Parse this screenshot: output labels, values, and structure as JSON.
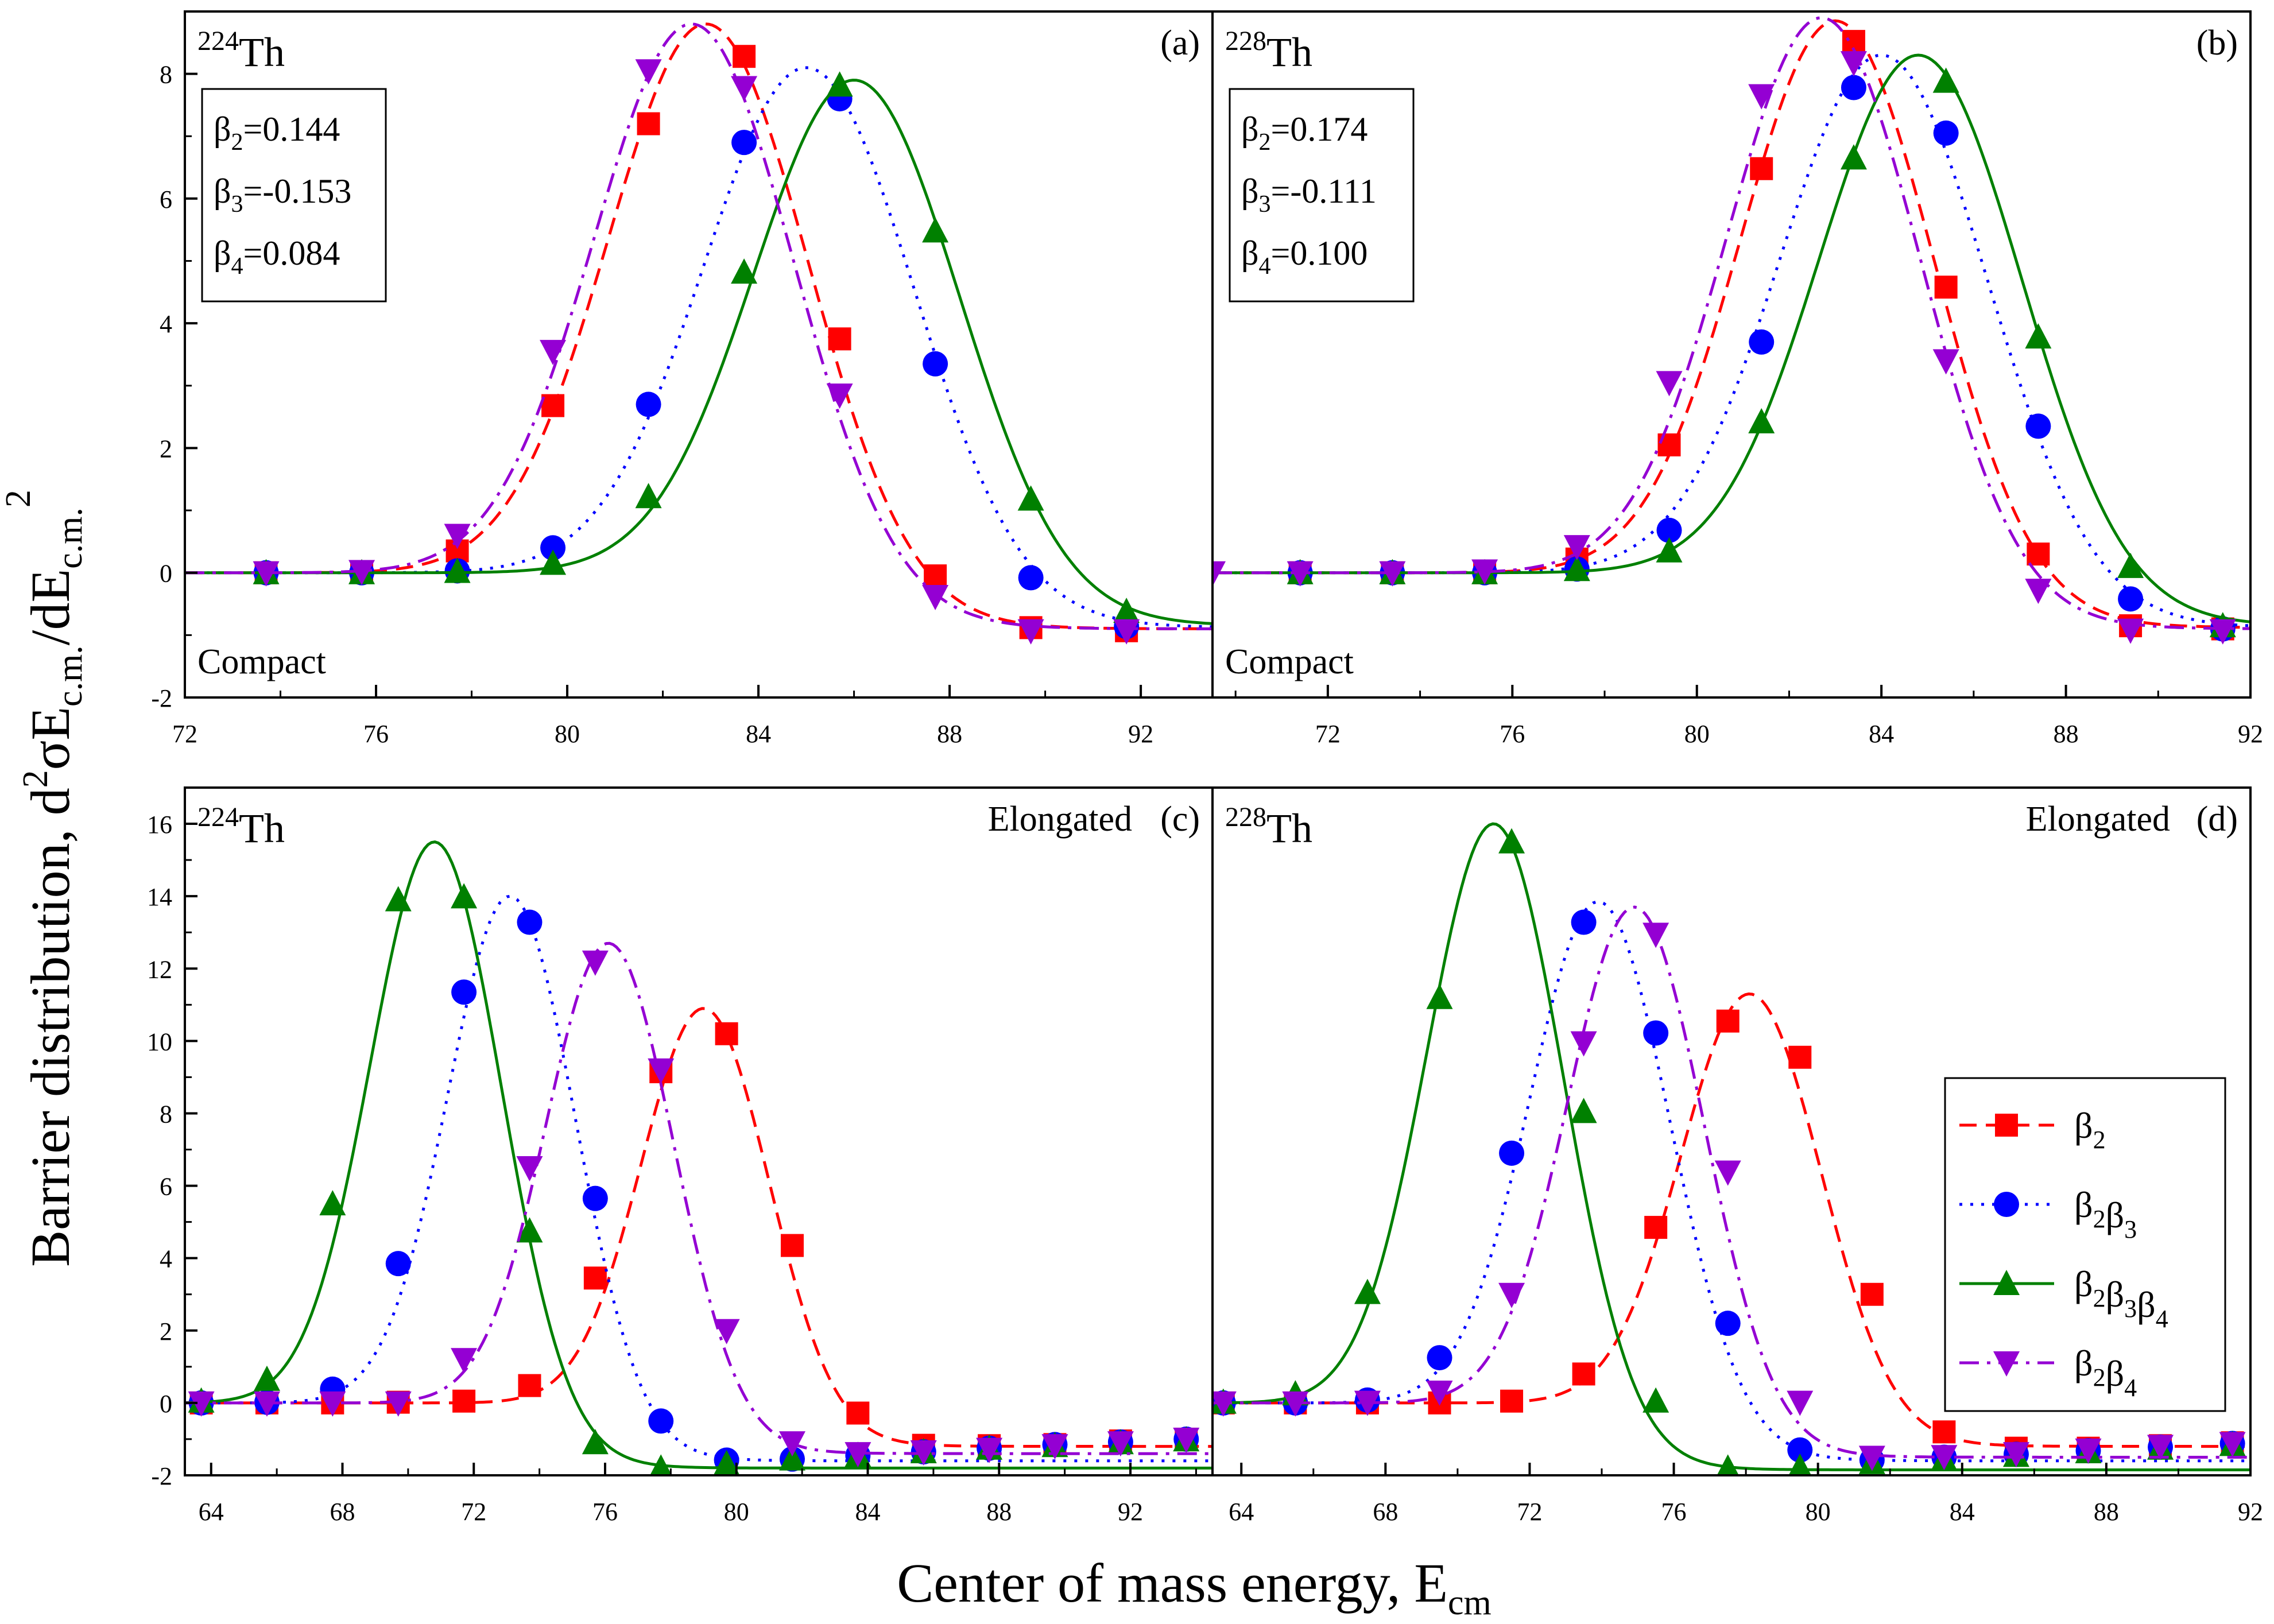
{
  "figure": {
    "ylabel_main": "Barrier distribution, d",
    "ylabel_sup": "2",
    "ylabel_mid": "σE",
    "ylabel_sub1": "c.m.",
    "ylabel_mid2": "/dE",
    "ylabel_sub2": "c.m.",
    "ylabel_sup2": "2",
    "xlabel_main": "Center of mass energy, E",
    "xlabel_sub": "cm"
  },
  "legend": {
    "items": [
      {
        "label": "β",
        "sub": [
          "2"
        ],
        "color": "#ff0000",
        "marker": "square",
        "dash": "dashed"
      },
      {
        "label": "β",
        "sub": [
          "2",
          "3"
        ],
        "color": "#0000ff",
        "marker": "circle",
        "dash": "dotted"
      },
      {
        "label": "β",
        "sub": [
          "2",
          "3",
          "4"
        ],
        "color": "#008000",
        "marker": "triangle-up",
        "dash": "solid"
      },
      {
        "label": "β",
        "sub": [
          "2",
          "4"
        ],
        "color": "#9400d3",
        "marker": "triangle-down",
        "dash": "dashdot"
      }
    ]
  },
  "chart_data": [
    {
      "type": "line",
      "panel_label": "(a)",
      "nucleus_mass": "224",
      "nucleus": "Th",
      "shape": "Compact",
      "params": [
        "=0.144",
        "=-0.153",
        "=0.084"
      ],
      "param_subs": [
        "2",
        "3",
        "4"
      ],
      "xlim": [
        72,
        93.5
      ],
      "ylim": [
        -2,
        9
      ],
      "xticks": [
        72,
        76,
        80,
        84,
        88,
        92
      ],
      "yticks": [
        -2,
        0,
        2,
        4,
        6,
        8
      ],
      "series": [
        {
          "name": "β2",
          "peak": 82.9,
          "height": 8.8,
          "sigma": 2.05,
          "floor": -0.9,
          "x": [
            73.7,
            75.7,
            77.7,
            79.7,
            81.7,
            83.7,
            85.7,
            87.7,
            89.7,
            91.7
          ],
          "y": [
            0,
            0.01,
            0.35,
            2.68,
            7.2,
            8.28,
            3.75,
            -0.05,
            -0.88,
            -0.93
          ]
        },
        {
          "name": "β2β3",
          "peak": 85.0,
          "height": 8.1,
          "sigma": 2.15,
          "floor": -0.88,
          "x": [
            73.7,
            75.7,
            77.7,
            79.7,
            81.7,
            83.7,
            85.7,
            87.7,
            89.7,
            91.7
          ],
          "y": [
            0,
            0,
            0.03,
            0.4,
            2.7,
            6.9,
            7.6,
            3.35,
            -0.08,
            -0.86
          ]
        },
        {
          "name": "β2β3β4",
          "peak": 86.0,
          "height": 7.9,
          "sigma": 2.1,
          "floor": -0.85,
          "x": [
            73.7,
            75.7,
            77.7,
            79.7,
            81.7,
            83.7,
            85.7,
            87.7,
            89.7,
            91.7
          ],
          "y": [
            0,
            0,
            0.02,
            0.15,
            1.22,
            4.82,
            7.82,
            5.48,
            1.18,
            -0.62
          ]
        },
        {
          "name": "β2β4",
          "peak": 82.6,
          "height": 8.8,
          "sigma": 2.05,
          "floor": -0.9,
          "x": [
            73.7,
            75.7,
            77.7,
            79.7,
            81.7,
            83.7,
            85.7,
            87.7,
            89.7,
            91.7
          ],
          "y": [
            0,
            0.02,
            0.6,
            3.55,
            8.05,
            7.78,
            2.85,
            -0.38,
            -0.93,
            -0.93
          ]
        }
      ]
    },
    {
      "type": "line",
      "panel_label": "(b)",
      "nucleus_mass": "228",
      "nucleus": "Th",
      "shape": "Compact",
      "params": [
        "=0.174",
        "=-0.111",
        "=0.100"
      ],
      "param_subs": [
        "2",
        "3",
        "4"
      ],
      "xlim": [
        69.5,
        92
      ],
      "ylim": [
        -2,
        9
      ],
      "xticks": [
        72,
        76,
        80,
        84,
        88,
        92
      ],
      "yticks": [],
      "series": [
        {
          "name": "β2",
          "peak": 83.0,
          "height": 8.85,
          "sigma": 2.05,
          "floor": -0.88,
          "x": [
            71.4,
            73.4,
            75.4,
            77.4,
            79.4,
            81.4,
            83.4,
            85.4,
            87.4,
            89.4,
            91.4
          ],
          "y": [
            0,
            0,
            0,
            0.22,
            2.05,
            6.48,
            8.52,
            4.58,
            0.3,
            -0.85,
            -0.9
          ]
        },
        {
          "name": "β2β3",
          "peak": 84.0,
          "height": 8.3,
          "sigma": 2.2,
          "floor": -0.88,
          "x": [
            71.4,
            73.4,
            75.4,
            77.4,
            79.4,
            81.4,
            83.4,
            85.4,
            87.4,
            89.4,
            91.4
          ],
          "y": [
            0,
            0,
            0,
            0.06,
            0.68,
            3.7,
            7.78,
            7.05,
            2.35,
            -0.42,
            -0.9
          ]
        },
        {
          "name": "β2β3β4",
          "peak": 84.8,
          "height": 8.3,
          "sigma": 2.15,
          "floor": -0.85,
          "x": [
            71.4,
            73.4,
            75.4,
            77.4,
            79.4,
            81.4,
            83.4,
            85.4,
            87.4,
            89.4,
            91.4
          ],
          "y": [
            0,
            0,
            0,
            0.05,
            0.35,
            2.42,
            6.65,
            7.88,
            3.78,
            0.1,
            -0.85
          ]
        },
        {
          "name": "β2β4",
          "peak": 82.7,
          "height": 8.9,
          "sigma": 2.05,
          "floor": -0.9,
          "x": [
            69.5,
            71.4,
            73.4,
            75.4,
            77.4,
            79.4,
            81.4,
            83.4,
            85.4,
            87.4,
            89.4,
            91.4
          ],
          "y": [
            0,
            0,
            0,
            0.03,
            0.42,
            3.05,
            7.65,
            8.18,
            3.4,
            -0.28,
            -0.92,
            -0.93
          ]
        }
      ]
    },
    {
      "type": "line",
      "panel_label": "(c)",
      "nucleus_mass": "224",
      "nucleus": "Th",
      "shape": "Elongated",
      "params": [],
      "param_subs": [],
      "xlim": [
        63.2,
        94.5
      ],
      "ylim": [
        -2,
        17
      ],
      "xticks": [
        64,
        68,
        72,
        76,
        80,
        84,
        88,
        92
      ],
      "yticks": [
        -2,
        0,
        2,
        4,
        6,
        8,
        10,
        12,
        14,
        16
      ],
      "series": [
        {
          "name": "β2",
          "peak": 79.0,
          "height": 10.9,
          "sigma": 1.9,
          "floor": -1.2,
          "x": [
            63.7,
            65.7,
            67.7,
            69.7,
            71.7,
            73.7,
            75.7,
            77.7,
            79.7,
            81.7,
            83.7,
            85.7,
            87.7,
            89.7,
            91.7,
            93.7
          ],
          "y": [
            0,
            0,
            0,
            0.02,
            0.05,
            0.48,
            3.45,
            9.15,
            10.2,
            4.35,
            -0.28,
            -1.17,
            -1.18,
            -1.15,
            -1.05,
            -1.0
          ]
        },
        {
          "name": "β2β3",
          "peak": 73.1,
          "height": 14.0,
          "sigma": 1.9,
          "floor": -1.6,
          "x": [
            63.7,
            65.7,
            67.7,
            69.7,
            71.7,
            73.7,
            75.7,
            77.7,
            79.7,
            81.7,
            83.7,
            85.7,
            87.7,
            89.7,
            91.7,
            93.7
          ],
          "y": [
            0,
            0.02,
            0.38,
            3.85,
            11.35,
            13.28,
            5.65,
            -0.5,
            -1.58,
            -1.55,
            -1.45,
            -1.35,
            -1.25,
            -1.15,
            -1.08,
            -1.0
          ]
        },
        {
          "name": "β2β3β4",
          "peak": 70.8,
          "height": 15.5,
          "sigma": 1.95,
          "floor": -1.8,
          "x": [
            63.7,
            65.7,
            67.7,
            69.7,
            71.7,
            73.7,
            75.7,
            77.7,
            79.7,
            81.7,
            83.7,
            85.7,
            87.7,
            89.7,
            91.7,
            93.7
          ],
          "y": [
            0.05,
            0.65,
            5.5,
            13.9,
            13.98,
            4.75,
            -1.1,
            -1.8,
            -1.68,
            -1.55,
            -1.45,
            -1.35,
            -1.25,
            -1.18,
            -1.1,
            -1.02
          ]
        },
        {
          "name": "β2β4",
          "peak": 76.1,
          "height": 12.7,
          "sigma": 1.9,
          "floor": -1.4,
          "x": [
            63.7,
            65.7,
            67.7,
            69.7,
            71.7,
            73.7,
            75.7,
            77.7,
            79.7,
            81.7,
            83.7,
            85.7,
            87.7,
            89.7,
            91.7,
            93.7
          ],
          "y": [
            0,
            0,
            0,
            0,
            1.2,
            6.5,
            12.18,
            9.2,
            2.0,
            -1.1,
            -1.4,
            -1.35,
            -1.28,
            -1.18,
            -1.1,
            -1.0
          ]
        }
      ]
    },
    {
      "type": "line",
      "panel_label": "(d)",
      "nucleus_mass": "228",
      "nucleus": "Th",
      "shape": "Elongated",
      "params": [],
      "param_subs": [],
      "xlim": [
        63.2,
        92
      ],
      "ylim": [
        -2,
        17
      ],
      "xticks": [
        64,
        68,
        72,
        76,
        80,
        84,
        88,
        92
      ],
      "yticks": [],
      "series": [
        {
          "name": "β2",
          "peak": 78.1,
          "height": 11.3,
          "sigma": 1.9,
          "floor": -1.2,
          "x": [
            63.5,
            65.5,
            67.5,
            69.5,
            71.5,
            73.5,
            75.5,
            77.5,
            79.5,
            81.5,
            83.5,
            85.5,
            87.5,
            89.5,
            91.5
          ],
          "y": [
            0,
            0,
            0,
            0,
            0.05,
            0.8,
            4.85,
            10.55,
            9.55,
            3.0,
            -0.8,
            -1.25,
            -1.25,
            -1.18,
            -1.1
          ]
        },
        {
          "name": "β2β3",
          "peak": 73.9,
          "height": 13.85,
          "sigma": 1.9,
          "floor": -1.6,
          "x": [
            63.5,
            65.5,
            67.5,
            69.5,
            71.5,
            73.5,
            75.5,
            77.5,
            79.5,
            81.5,
            83.5,
            85.5,
            87.5,
            89.5,
            91.5
          ],
          "y": [
            0,
            0,
            0.08,
            1.25,
            6.9,
            13.28,
            10.22,
            2.2,
            -1.3,
            -1.58,
            -1.5,
            -1.42,
            -1.32,
            -1.22,
            -1.12
          ]
        },
        {
          "name": "β2β3β4",
          "peak": 71.0,
          "height": 16.0,
          "sigma": 1.85,
          "floor": -1.85,
          "x": [
            63.5,
            65.5,
            67.5,
            69.5,
            71.5,
            73.5,
            75.5,
            77.5,
            79.5,
            81.5,
            83.5,
            85.5,
            87.5,
            89.5,
            91.5
          ],
          "y": [
            0.02,
            0.25,
            3.05,
            11.2,
            15.5,
            8.05,
            0.05,
            -1.8,
            -1.78,
            -1.65,
            -1.55,
            -1.45,
            -1.35,
            -1.25,
            -1.15
          ]
        },
        {
          "name": "β2β4",
          "peak": 74.9,
          "height": 13.7,
          "sigma": 1.85,
          "floor": -1.5,
          "x": [
            63.5,
            65.5,
            67.5,
            69.5,
            71.5,
            73.5,
            75.5,
            77.5,
            79.5,
            81.5,
            83.5,
            85.5,
            87.5,
            89.5,
            91.5
          ],
          "y": [
            0,
            0,
            0.02,
            0.3,
            3.0,
            9.95,
            12.95,
            6.38,
            0.02,
            -1.5,
            -1.48,
            -1.4,
            -1.3,
            -1.2,
            -1.12
          ]
        }
      ]
    }
  ]
}
